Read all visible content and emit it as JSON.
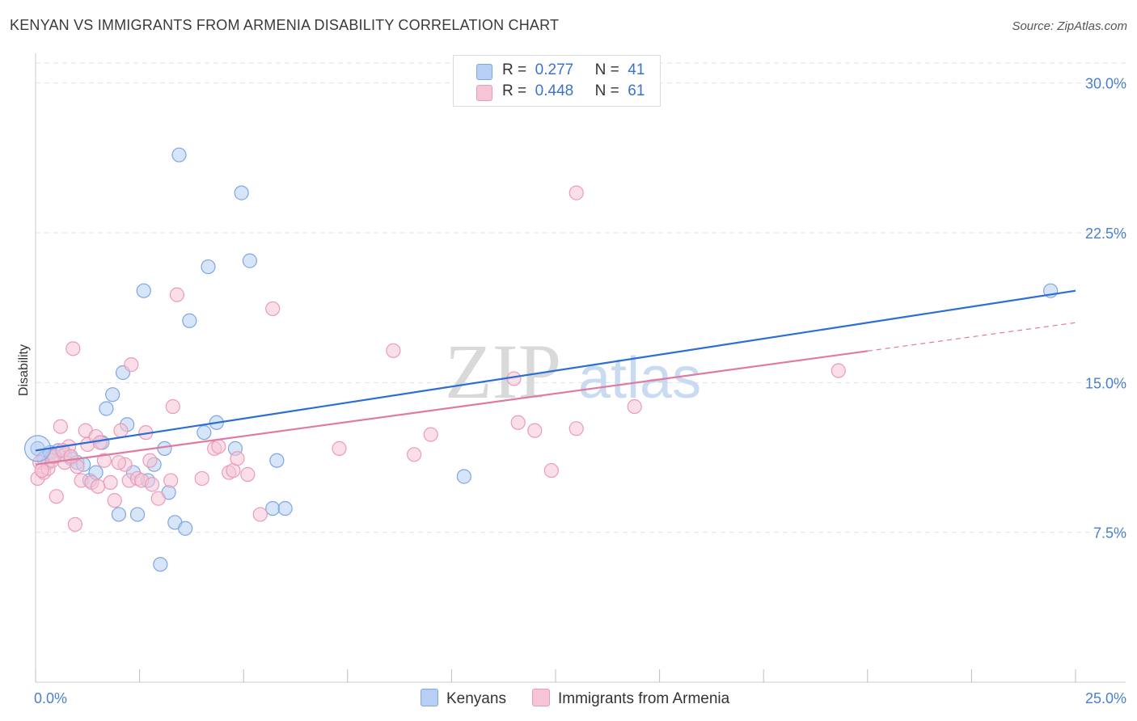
{
  "header": {
    "title": "KENYAN VS IMMIGRANTS FROM ARMENIA DISABILITY CORRELATION CHART",
    "source": "Source: ZipAtlas.com"
  },
  "colors": {
    "blue": "#2a6fd1",
    "blue_fill": "#b7cff3",
    "pink": "#e07aa0",
    "pink_fill": "#f5c4d6",
    "tick_text": "#4a7fd0",
    "grid": "#e2e2e2"
  },
  "legend": {
    "rows": [
      {
        "r_label": "R =",
        "r_value": "0.277",
        "n_label": "N =",
        "n_value": "41"
      },
      {
        "r_label": "R =",
        "r_value": "0.448",
        "n_label": "N =",
        "n_value": "61"
      }
    ]
  },
  "bottom_legend": {
    "series1": "Kenyans",
    "series2": "Immigrants from Armenia"
  },
  "watermark": {
    "zip": "ZIP",
    "atlas": "atlas"
  },
  "chart_data": {
    "type": "scatter",
    "title": "KENYAN VS IMMIGRANTS FROM ARMENIA DISABILITY CORRELATION CHART",
    "xlabel": "",
    "ylabel": "Disability",
    "xlim": [
      0,
      25
    ],
    "ylim": [
      0,
      31
    ],
    "x_tick_labels": [
      "0.0%",
      "25.0%"
    ],
    "y_ticks": [
      7.5,
      15.0,
      22.5,
      30.0
    ],
    "y_tick_labels": [
      "7.5%",
      "15.0%",
      "22.5%",
      "30.0%"
    ],
    "grid": true,
    "legend_position": "top-center",
    "series": [
      {
        "name": "Kenyans",
        "R": 0.277,
        "N": 41,
        "trend": {
          "x": [
            0,
            25
          ],
          "y": [
            11.6,
            19.6
          ],
          "dashed_from": null
        },
        "points": [
          [
            0.05,
            11.7
          ],
          [
            0.2,
            11.2
          ],
          [
            0.3,
            11.0
          ],
          [
            0.4,
            11.3
          ],
          [
            0.55,
            11.6
          ],
          [
            0.7,
            11.4
          ],
          [
            0.85,
            11.2
          ],
          [
            1.0,
            11.0
          ],
          [
            1.15,
            10.9
          ],
          [
            1.3,
            10.1
          ],
          [
            1.45,
            10.5
          ],
          [
            1.6,
            12.0
          ],
          [
            1.7,
            13.7
          ],
          [
            1.85,
            14.4
          ],
          [
            2.0,
            8.4
          ],
          [
            2.1,
            15.5
          ],
          [
            2.2,
            12.9
          ],
          [
            2.35,
            10.5
          ],
          [
            2.45,
            8.4
          ],
          [
            2.6,
            19.6
          ],
          [
            2.7,
            10.1
          ],
          [
            2.85,
            10.9
          ],
          [
            3.0,
            5.9
          ],
          [
            3.1,
            11.7
          ],
          [
            3.2,
            9.5
          ],
          [
            3.35,
            8.0
          ],
          [
            3.45,
            26.4
          ],
          [
            3.6,
            7.7
          ],
          [
            3.7,
            18.1
          ],
          [
            4.05,
            12.5
          ],
          [
            4.15,
            20.8
          ],
          [
            4.35,
            13.0
          ],
          [
            4.8,
            11.7
          ],
          [
            4.95,
            24.5
          ],
          [
            5.15,
            21.1
          ],
          [
            5.7,
            8.7
          ],
          [
            5.8,
            11.1
          ],
          [
            6.0,
            8.7
          ],
          [
            10.3,
            10.3
          ],
          [
            24.4,
            19.6
          ],
          [
            0.35,
            11.5
          ]
        ]
      },
      {
        "name": "Immigrants from Armenia",
        "R": 0.448,
        "N": 61,
        "trend": {
          "x": [
            0,
            25
          ],
          "y": [
            10.9,
            18.0
          ],
          "dashed_from": 20.0
        },
        "points": [
          [
            0.05,
            10.2
          ],
          [
            0.1,
            11.0
          ],
          [
            0.2,
            10.5
          ],
          [
            0.3,
            10.7
          ],
          [
            0.4,
            11.1
          ],
          [
            0.5,
            9.3
          ],
          [
            0.6,
            12.8
          ],
          [
            0.7,
            11.0
          ],
          [
            0.8,
            11.8
          ],
          [
            0.9,
            16.7
          ],
          [
            0.95,
            7.9
          ],
          [
            1.0,
            10.8
          ],
          [
            1.1,
            10.1
          ],
          [
            1.2,
            12.6
          ],
          [
            1.25,
            11.9
          ],
          [
            1.35,
            10.0
          ],
          [
            1.45,
            12.3
          ],
          [
            1.5,
            9.8
          ],
          [
            1.65,
            11.1
          ],
          [
            1.8,
            10.0
          ],
          [
            1.9,
            9.1
          ],
          [
            2.05,
            12.6
          ],
          [
            2.15,
            10.9
          ],
          [
            2.25,
            10.1
          ],
          [
            2.3,
            15.9
          ],
          [
            2.45,
            10.2
          ],
          [
            2.55,
            10.1
          ],
          [
            2.65,
            12.5
          ],
          [
            2.75,
            11.1
          ],
          [
            2.8,
            9.9
          ],
          [
            2.95,
            9.2
          ],
          [
            3.3,
            13.8
          ],
          [
            3.4,
            19.4
          ],
          [
            4.0,
            10.2
          ],
          [
            4.3,
            11.7
          ],
          [
            4.4,
            11.8
          ],
          [
            4.65,
            10.5
          ],
          [
            4.75,
            10.6
          ],
          [
            4.85,
            11.2
          ],
          [
            5.1,
            10.4
          ],
          [
            5.4,
            8.4
          ],
          [
            5.7,
            18.7
          ],
          [
            7.3,
            11.7
          ],
          [
            8.6,
            16.6
          ],
          [
            9.1,
            11.4
          ],
          [
            9.5,
            12.4
          ],
          [
            11.5,
            15.2
          ],
          [
            11.6,
            13.0
          ],
          [
            12.0,
            12.6
          ],
          [
            12.4,
            10.6
          ],
          [
            13.0,
            12.7
          ],
          [
            13.0,
            24.5
          ],
          [
            14.4,
            13.8
          ],
          [
            19.3,
            15.6
          ],
          [
            0.15,
            10.6
          ],
          [
            0.45,
            11.3
          ],
          [
            0.65,
            11.6
          ],
          [
            0.85,
            11.3
          ],
          [
            1.55,
            12.0
          ],
          [
            2.0,
            11.0
          ],
          [
            3.25,
            10.1
          ]
        ]
      }
    ]
  }
}
